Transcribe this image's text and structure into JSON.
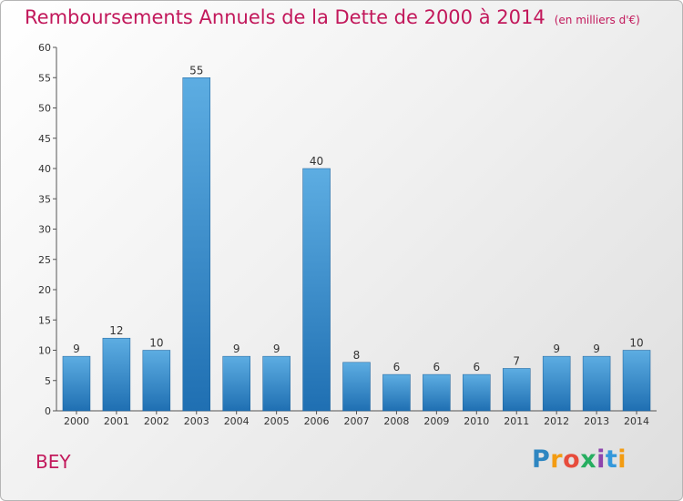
{
  "header": {
    "title": "Remboursements Annuels de la Dette de 2000 à 2014",
    "subtitle": "(en milliers d'€)"
  },
  "footer": {
    "commune": "BEY",
    "logo_text": "Proxiti"
  },
  "colors": {
    "title": "#c2185b",
    "bar_top": "#5dade2",
    "bar_bottom": "#1f6fb2",
    "axis": "#555555"
  },
  "chart_data": {
    "type": "bar",
    "title": "Remboursements Annuels de la Dette de 2000 à 2014",
    "subtitle": "(en milliers d'€)",
    "xlabel": "",
    "ylabel": "",
    "categories": [
      "2000",
      "2001",
      "2002",
      "2003",
      "2004",
      "2005",
      "2006",
      "2007",
      "2008",
      "2009",
      "2010",
      "2011",
      "2012",
      "2013",
      "2014"
    ],
    "values": [
      9,
      12,
      10,
      55,
      9,
      9,
      40,
      8,
      6,
      6,
      6,
      7,
      9,
      9,
      10
    ],
    "ylim": [
      0,
      60
    ],
    "yticks": [
      0,
      5,
      10,
      15,
      20,
      25,
      30,
      35,
      40,
      45,
      50,
      55,
      60
    ],
    "grid": false,
    "legend": "none"
  }
}
